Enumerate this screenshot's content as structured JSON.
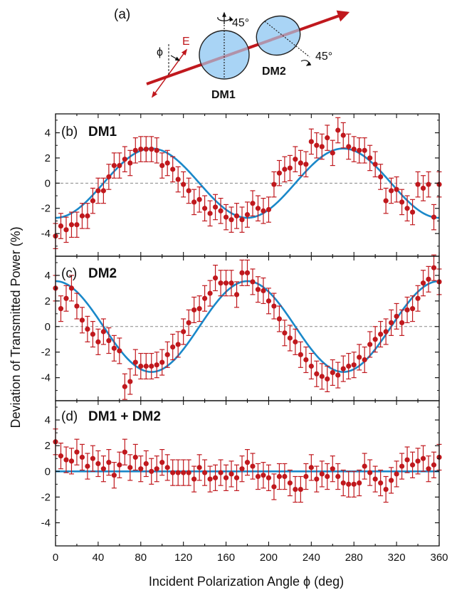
{
  "schematic": {
    "panel_label": "(a)",
    "polarization_label": "E",
    "angle_symbol": "ϕ",
    "rotation_label_1": "45°",
    "rotation_label_2": "45°",
    "mirror_1_label": "DM1",
    "mirror_2_label": "DM2",
    "colors": {
      "beam": "#c0181d",
      "mirror_fill": "#a9d4f5",
      "mirror_stroke": "#222222"
    }
  },
  "chart_data": [
    {
      "type": "scatter",
      "panel_label": "(b)",
      "title": "DM1",
      "xlabel": "Incident Polarization Angle ϕ (deg)",
      "ylabel": "Deviation of Transmitted Power (%)",
      "xlim": [
        0,
        360
      ],
      "ylim": [
        -5.8,
        5.5
      ],
      "yticks": [
        -4,
        -2,
        0,
        2,
        4
      ],
      "grid": false,
      "zero_line": "dashed",
      "x": [
        0,
        5,
        10,
        15,
        20,
        25,
        30,
        35,
        40,
        45,
        50,
        55,
        60,
        65,
        70,
        75,
        80,
        85,
        90,
        95,
        100,
        105,
        110,
        115,
        120,
        125,
        130,
        135,
        140,
        145,
        150,
        155,
        160,
        165,
        170,
        175,
        180,
        185,
        190,
        195,
        200,
        205,
        210,
        215,
        220,
        225,
        230,
        235,
        240,
        245,
        250,
        255,
        260,
        265,
        270,
        275,
        280,
        285,
        290,
        295,
        300,
        305,
        310,
        315,
        320,
        325,
        330,
        335,
        340,
        345,
        350,
        355,
        360
      ],
      "values": [
        -4.2,
        -3.4,
        -3.7,
        -3.3,
        -3.3,
        -2.6,
        -2.6,
        -1.4,
        -0.6,
        -0.6,
        0.5,
        1.4,
        1.4,
        1.9,
        1.6,
        2.6,
        2.7,
        2.7,
        2.7,
        2.6,
        1.4,
        1.6,
        1.1,
        0.3,
        -0.1,
        -0.6,
        -1.5,
        -1.3,
        -2.0,
        -2.4,
        -1.9,
        -2.2,
        -2.7,
        -2.9,
        -2.6,
        -2.9,
        -2.5,
        -1.6,
        -2.0,
        -2.2,
        -2.1,
        -0.1,
        0.8,
        1.1,
        1.2,
        1.9,
        1.6,
        1.5,
        3.3,
        3.0,
        2.9,
        3.6,
        2.4,
        4.2,
        3.8,
        2.9,
        2.7,
        2.6,
        2.6,
        2.0,
        1.5,
        0.5,
        -1.4,
        -0.6,
        -0.5,
        -1.5,
        -2.0,
        -2.3,
        -0.1,
        -0.4,
        -0.1,
        -2.7,
        -0.1
      ],
      "error": 1.0,
      "fit": {
        "type": "cosine",
        "amplitude": -2.75,
        "period_deg": 180,
        "offset": 0
      },
      "colors": {
        "points": "#c0181d",
        "fit": "#1a88c9",
        "zero_line": "#888888"
      }
    },
    {
      "type": "scatter",
      "panel_label": "(c)",
      "title": "DM2",
      "xlim": [
        0,
        360
      ],
      "ylim": [
        -5.8,
        5.5
      ],
      "yticks": [
        -4,
        -2,
        0,
        2,
        4
      ],
      "grid": false,
      "zero_line": "dashed",
      "x": [
        0,
        5,
        10,
        15,
        20,
        25,
        30,
        35,
        40,
        45,
        50,
        55,
        60,
        65,
        70,
        75,
        80,
        85,
        90,
        95,
        100,
        105,
        110,
        115,
        120,
        125,
        130,
        135,
        140,
        145,
        150,
        155,
        160,
        165,
        170,
        175,
        180,
        185,
        190,
        195,
        200,
        205,
        210,
        215,
        220,
        225,
        230,
        235,
        240,
        245,
        250,
        255,
        260,
        265,
        270,
        275,
        280,
        285,
        290,
        295,
        300,
        305,
        310,
        315,
        320,
        325,
        330,
        335,
        340,
        345,
        350,
        355,
        360
      ],
      "values": [
        3.0,
        1.4,
        2.2,
        3.0,
        1.6,
        0.5,
        -0.2,
        -0.6,
        -1.2,
        -0.4,
        -1.1,
        -1.7,
        -1.9,
        -4.7,
        -4.3,
        -2.8,
        -3.1,
        -3.1,
        -3.1,
        -3.0,
        -2.8,
        -2.2,
        -1.6,
        -1.4,
        -0.4,
        0.3,
        1.3,
        1.4,
        2.2,
        2.6,
        3.8,
        3.4,
        3.4,
        3.4,
        2.5,
        4.2,
        4.2,
        3.5,
        2.9,
        2.8,
        2.0,
        1.6,
        0.6,
        -0.5,
        -0.9,
        -1.2,
        -2.2,
        -2.6,
        -3.1,
        -3.7,
        -3.9,
        -4.1,
        -3.6,
        -3.8,
        -3.3,
        -3.1,
        -3.0,
        -2.4,
        -2.6,
        -1.4,
        -1.0,
        -0.6,
        -0.4,
        0.3,
        0.8,
        0.3,
        1.3,
        1.4,
        2.2,
        3.4,
        3.7,
        4.6,
        3.5
      ],
      "error": 1.0,
      "fit": {
        "type": "cosine",
        "amplitude": 3.55,
        "period_deg": 180,
        "offset": 0
      },
      "colors": {
        "points": "#c0181d",
        "fit": "#1a88c9",
        "zero_line": "#888888"
      }
    },
    {
      "type": "scatter",
      "panel_label": "(d)",
      "title": "DM1 + DM2",
      "xlim": [
        0,
        360
      ],
      "ylim": [
        -5.8,
        5.5
      ],
      "yticks": [
        -4,
        -2,
        0,
        2,
        4
      ],
      "xticks": [
        0,
        40,
        80,
        120,
        160,
        200,
        240,
        280,
        320,
        360
      ],
      "grid": false,
      "zero_line": "none",
      "x": [
        0,
        5,
        10,
        15,
        20,
        25,
        30,
        35,
        40,
        45,
        50,
        55,
        60,
        65,
        70,
        75,
        80,
        85,
        90,
        95,
        100,
        105,
        110,
        115,
        120,
        125,
        130,
        135,
        140,
        145,
        150,
        155,
        160,
        165,
        170,
        175,
        180,
        185,
        190,
        195,
        200,
        205,
        210,
        215,
        220,
        225,
        230,
        235,
        240,
        245,
        250,
        255,
        260,
        265,
        270,
        275,
        280,
        285,
        290,
        295,
        300,
        305,
        310,
        315,
        320,
        325,
        330,
        335,
        340,
        345,
        350,
        355,
        360
      ],
      "values": [
        2.3,
        1.2,
        0.9,
        0.8,
        1.5,
        1.1,
        0.4,
        1.0,
        0.6,
        0.2,
        0.7,
        -0.3,
        0.5,
        1.5,
        0.3,
        1.1,
        0.2,
        0.6,
        0.0,
        0.2,
        0.7,
        0.3,
        -0.1,
        -0.1,
        -0.1,
        -0.1,
        -0.6,
        0.3,
        -0.1,
        -0.6,
        -0.5,
        -0.1,
        -0.5,
        -0.2,
        -0.5,
        0.2,
        0.7,
        0.4,
        -0.4,
        -0.3,
        -0.5,
        -1.2,
        -0.4,
        -0.4,
        -0.9,
        -1.4,
        -1.4,
        -0.4,
        0.3,
        -0.6,
        -0.2,
        -0.4,
        0.2,
        -0.4,
        -0.9,
        -1.0,
        -1.0,
        -0.9,
        0.4,
        -0.1,
        -0.6,
        -0.9,
        -1.4,
        -0.7,
        -0.2,
        0.4,
        0.9,
        0.5,
        0.8,
        1.0,
        0.2,
        0.5,
        1.1
      ],
      "error": 1.0,
      "fit": {
        "type": "cosine",
        "amplitude": 0.0,
        "period_deg": 180,
        "offset": 0
      },
      "colors": {
        "points": "#c0181d",
        "fit": "#1a88c9",
        "zero_line": "#888888"
      }
    }
  ]
}
